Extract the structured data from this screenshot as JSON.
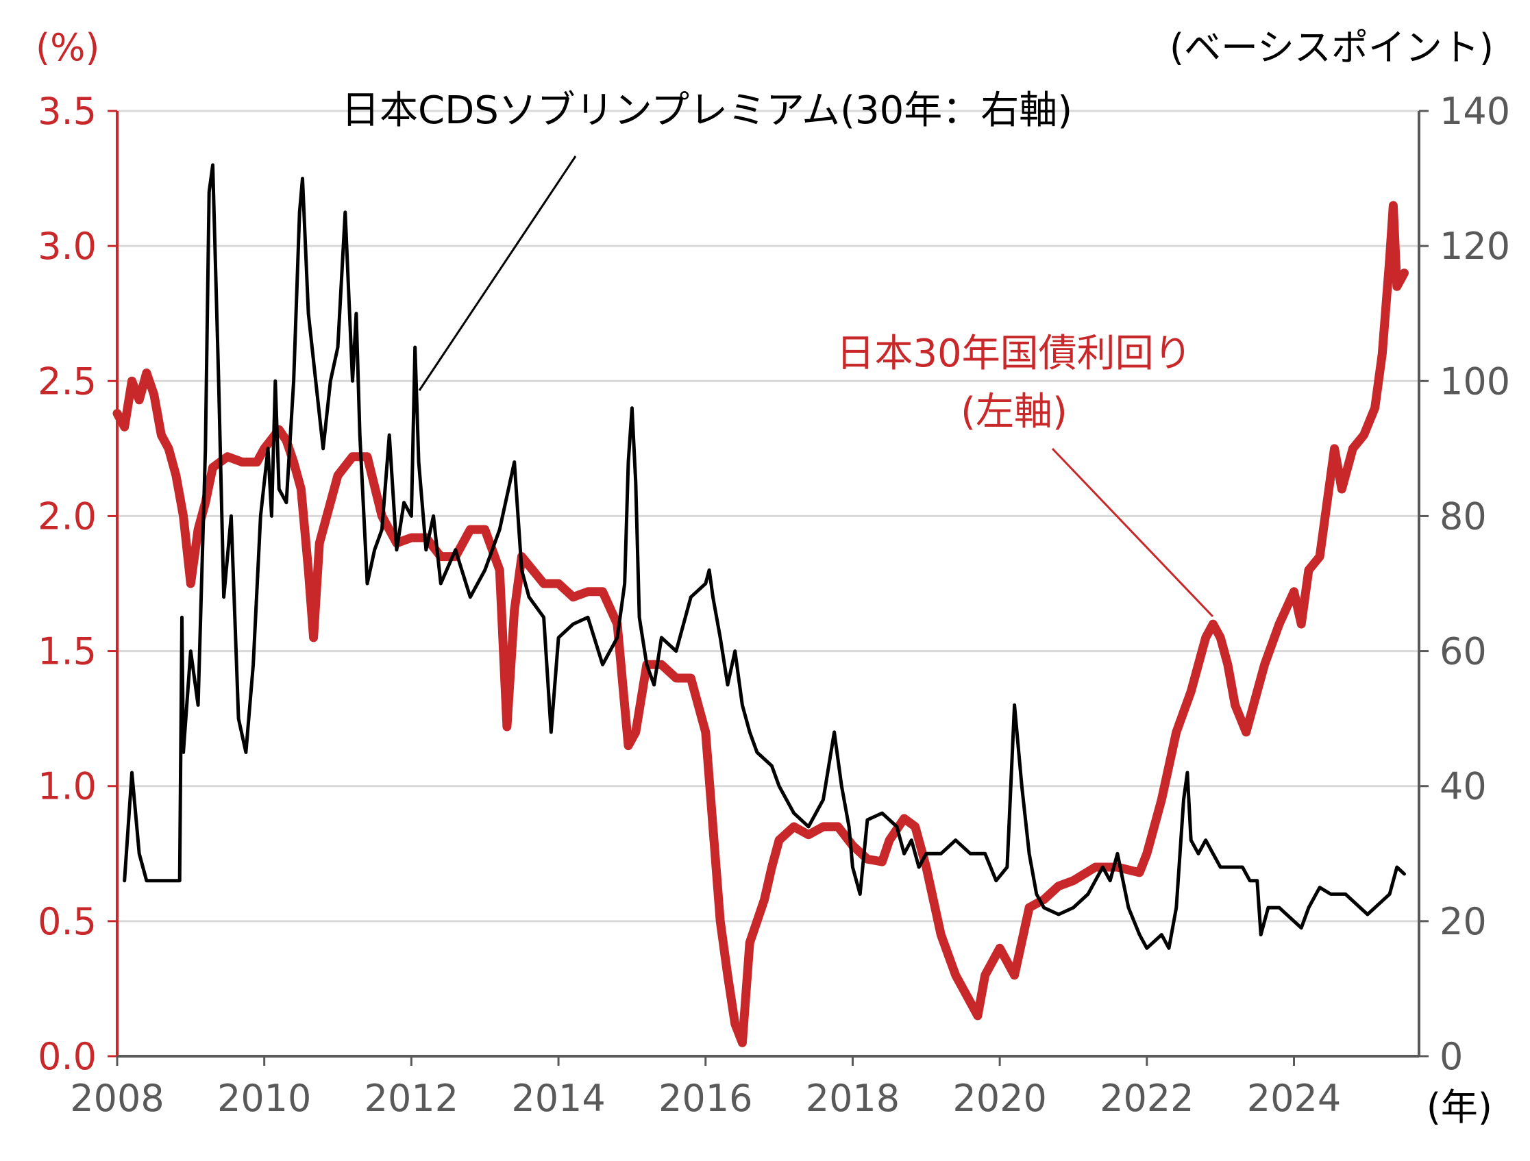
{
  "chart_data": {
    "type": "line",
    "title": "",
    "left_axis": {
      "unit_label": "(%)",
      "ylim": [
        0,
        3.5
      ],
      "ticks": [
        "0.0",
        "0.5",
        "1.0",
        "1.5",
        "2.0",
        "2.5",
        "3.0",
        "3.5"
      ],
      "color": "#c8282a"
    },
    "right_axis": {
      "unit_label": "(ベーシスポイント)",
      "ylim": [
        0,
        140
      ],
      "ticks": [
        "0",
        "20",
        "40",
        "60",
        "80",
        "100",
        "120",
        "140"
      ],
      "color": "#595959"
    },
    "x_axis": {
      "unit_label": "(年)",
      "xlim": [
        2008,
        2025.7
      ],
      "ticks": [
        "2008",
        "2010",
        "2012",
        "2014",
        "2016",
        "2018",
        "2020",
        "2022",
        "2024"
      ]
    },
    "grid": "horizontal",
    "annotations": {
      "cds_label": "日本CDSソブリンプレミアム(30年：右軸)",
      "jgb_label_line1": "日本30年国債利回り",
      "jgb_label_line2": "(左軸)"
    },
    "series": [
      {
        "name": "日本30年国債利回り",
        "axis": "left",
        "color": "#c8282a",
        "points": [
          [
            2008.0,
            2.38
          ],
          [
            2008.1,
            2.33
          ],
          [
            2008.2,
            2.5
          ],
          [
            2008.3,
            2.43
          ],
          [
            2008.4,
            2.53
          ],
          [
            2008.5,
            2.45
          ],
          [
            2008.6,
            2.3
          ],
          [
            2008.7,
            2.25
          ],
          [
            2008.8,
            2.15
          ],
          [
            2008.9,
            2.0
          ],
          [
            2009.0,
            1.75
          ],
          [
            2009.1,
            1.95
          ],
          [
            2009.2,
            2.05
          ],
          [
            2009.3,
            2.18
          ],
          [
            2009.5,
            2.22
          ],
          [
            2009.7,
            2.2
          ],
          [
            2009.9,
            2.2
          ],
          [
            2010.0,
            2.25
          ],
          [
            2010.2,
            2.32
          ],
          [
            2010.3,
            2.28
          ],
          [
            2010.4,
            2.2
          ],
          [
            2010.5,
            2.1
          ],
          [
            2010.6,
            1.8
          ],
          [
            2010.67,
            1.55
          ],
          [
            2010.75,
            1.9
          ],
          [
            2010.9,
            2.05
          ],
          [
            2011.0,
            2.15
          ],
          [
            2011.2,
            2.22
          ],
          [
            2011.4,
            2.22
          ],
          [
            2011.6,
            2.0
          ],
          [
            2011.8,
            1.9
          ],
          [
            2012.0,
            1.92
          ],
          [
            2012.2,
            1.92
          ],
          [
            2012.4,
            1.85
          ],
          [
            2012.6,
            1.85
          ],
          [
            2012.8,
            1.95
          ],
          [
            2013.0,
            1.95
          ],
          [
            2013.2,
            1.8
          ],
          [
            2013.3,
            1.22
          ],
          [
            2013.4,
            1.65
          ],
          [
            2013.5,
            1.85
          ],
          [
            2013.8,
            1.75
          ],
          [
            2014.0,
            1.75
          ],
          [
            2014.2,
            1.7
          ],
          [
            2014.4,
            1.72
          ],
          [
            2014.6,
            1.72
          ],
          [
            2014.8,
            1.6
          ],
          [
            2014.95,
            1.15
          ],
          [
            2015.05,
            1.2
          ],
          [
            2015.2,
            1.45
          ],
          [
            2015.4,
            1.45
          ],
          [
            2015.6,
            1.4
          ],
          [
            2015.8,
            1.4
          ],
          [
            2016.0,
            1.2
          ],
          [
            2016.1,
            0.85
          ],
          [
            2016.2,
            0.5
          ],
          [
            2016.3,
            0.3
          ],
          [
            2016.4,
            0.12
          ],
          [
            2016.5,
            0.05
          ],
          [
            2016.6,
            0.42
          ],
          [
            2016.8,
            0.58
          ],
          [
            2016.9,
            0.7
          ],
          [
            2017.0,
            0.8
          ],
          [
            2017.2,
            0.85
          ],
          [
            2017.4,
            0.82
          ],
          [
            2017.6,
            0.85
          ],
          [
            2017.8,
            0.85
          ],
          [
            2018.0,
            0.78
          ],
          [
            2018.2,
            0.73
          ],
          [
            2018.4,
            0.72
          ],
          [
            2018.5,
            0.8
          ],
          [
            2018.7,
            0.88
          ],
          [
            2018.85,
            0.85
          ],
          [
            2019.0,
            0.7
          ],
          [
            2019.2,
            0.45
          ],
          [
            2019.4,
            0.3
          ],
          [
            2019.6,
            0.2
          ],
          [
            2019.7,
            0.15
          ],
          [
            2019.8,
            0.3
          ],
          [
            2020.0,
            0.4
          ],
          [
            2020.2,
            0.3
          ],
          [
            2020.4,
            0.55
          ],
          [
            2020.6,
            0.58
          ],
          [
            2020.8,
            0.63
          ],
          [
            2021.0,
            0.65
          ],
          [
            2021.3,
            0.7
          ],
          [
            2021.6,
            0.7
          ],
          [
            2021.9,
            0.68
          ],
          [
            2022.0,
            0.75
          ],
          [
            2022.2,
            0.95
          ],
          [
            2022.4,
            1.2
          ],
          [
            2022.6,
            1.35
          ],
          [
            2022.8,
            1.55
          ],
          [
            2022.9,
            1.6
          ],
          [
            2023.0,
            1.55
          ],
          [
            2023.1,
            1.45
          ],
          [
            2023.2,
            1.3
          ],
          [
            2023.35,
            1.2
          ],
          [
            2023.5,
            1.35
          ],
          [
            2023.6,
            1.45
          ],
          [
            2023.8,
            1.6
          ],
          [
            2024.0,
            1.72
          ],
          [
            2024.1,
            1.6
          ],
          [
            2024.2,
            1.8
          ],
          [
            2024.35,
            1.85
          ],
          [
            2024.45,
            2.05
          ],
          [
            2024.55,
            2.25
          ],
          [
            2024.65,
            2.1
          ],
          [
            2024.8,
            2.25
          ],
          [
            2024.95,
            2.3
          ],
          [
            2025.1,
            2.4
          ],
          [
            2025.2,
            2.6
          ],
          [
            2025.3,
            2.95
          ],
          [
            2025.35,
            3.15
          ],
          [
            2025.4,
            2.85
          ],
          [
            2025.5,
            2.9
          ]
        ]
      },
      {
        "name": "日本CDSソブリンプレミアム(30年)",
        "axis": "right",
        "color": "#000000",
        "points": [
          [
            2008.1,
            26
          ],
          [
            2008.2,
            42
          ],
          [
            2008.3,
            30
          ],
          [
            2008.4,
            26
          ],
          [
            2008.6,
            26
          ],
          [
            2008.85,
            26
          ],
          [
            2008.88,
            65
          ],
          [
            2008.9,
            45
          ],
          [
            2009.0,
            60
          ],
          [
            2009.1,
            52
          ],
          [
            2009.2,
            90
          ],
          [
            2009.25,
            128
          ],
          [
            2009.3,
            132
          ],
          [
            2009.38,
            100
          ],
          [
            2009.45,
            68
          ],
          [
            2009.55,
            80
          ],
          [
            2009.65,
            50
          ],
          [
            2009.75,
            45
          ],
          [
            2009.85,
            58
          ],
          [
            2009.95,
            80
          ],
          [
            2010.05,
            90
          ],
          [
            2010.1,
            80
          ],
          [
            2010.15,
            100
          ],
          [
            2010.2,
            84
          ],
          [
            2010.3,
            82
          ],
          [
            2010.4,
            100
          ],
          [
            2010.48,
            125
          ],
          [
            2010.52,
            130
          ],
          [
            2010.6,
            110
          ],
          [
            2010.7,
            100
          ],
          [
            2010.8,
            90
          ],
          [
            2010.9,
            100
          ],
          [
            2011.0,
            105
          ],
          [
            2011.1,
            125
          ],
          [
            2011.2,
            100
          ],
          [
            2011.25,
            110
          ],
          [
            2011.3,
            92
          ],
          [
            2011.4,
            70
          ],
          [
            2011.5,
            75
          ],
          [
            2011.6,
            78
          ],
          [
            2011.7,
            92
          ],
          [
            2011.8,
            75
          ],
          [
            2011.9,
            82
          ],
          [
            2012.0,
            80
          ],
          [
            2012.05,
            105
          ],
          [
            2012.1,
            88
          ],
          [
            2012.2,
            75
          ],
          [
            2012.3,
            80
          ],
          [
            2012.4,
            70
          ],
          [
            2012.6,
            75
          ],
          [
            2012.8,
            68
          ],
          [
            2013.0,
            72
          ],
          [
            2013.2,
            78
          ],
          [
            2013.4,
            88
          ],
          [
            2013.5,
            72
          ],
          [
            2013.6,
            68
          ],
          [
            2013.8,
            65
          ],
          [
            2013.9,
            48
          ],
          [
            2014.0,
            62
          ],
          [
            2014.2,
            64
          ],
          [
            2014.4,
            65
          ],
          [
            2014.6,
            58
          ],
          [
            2014.8,
            62
          ],
          [
            2014.9,
            70
          ],
          [
            2014.95,
            88
          ],
          [
            2015.0,
            96
          ],
          [
            2015.05,
            85
          ],
          [
            2015.1,
            65
          ],
          [
            2015.2,
            58
          ],
          [
            2015.3,
            55
          ],
          [
            2015.4,
            62
          ],
          [
            2015.6,
            60
          ],
          [
            2015.8,
            68
          ],
          [
            2016.0,
            70
          ],
          [
            2016.05,
            72
          ],
          [
            2016.1,
            68
          ],
          [
            2016.2,
            62
          ],
          [
            2016.3,
            55
          ],
          [
            2016.4,
            60
          ],
          [
            2016.5,
            52
          ],
          [
            2016.6,
            48
          ],
          [
            2016.7,
            45
          ],
          [
            2016.9,
            43
          ],
          [
            2017.0,
            40
          ],
          [
            2017.2,
            36
          ],
          [
            2017.4,
            34
          ],
          [
            2017.6,
            38
          ],
          [
            2017.75,
            48
          ],
          [
            2017.85,
            40
          ],
          [
            2017.95,
            34
          ],
          [
            2018.0,
            28
          ],
          [
            2018.1,
            24
          ],
          [
            2018.2,
            35
          ],
          [
            2018.4,
            36
          ],
          [
            2018.6,
            34
          ],
          [
            2018.7,
            30
          ],
          [
            2018.8,
            32
          ],
          [
            2018.9,
            28
          ],
          [
            2019.0,
            30
          ],
          [
            2019.2,
            30
          ],
          [
            2019.4,
            32
          ],
          [
            2019.6,
            30
          ],
          [
            2019.8,
            30
          ],
          [
            2019.95,
            26
          ],
          [
            2020.1,
            28
          ],
          [
            2020.2,
            52
          ],
          [
            2020.3,
            40
          ],
          [
            2020.4,
            30
          ],
          [
            2020.5,
            24
          ],
          [
            2020.6,
            22
          ],
          [
            2020.8,
            21
          ],
          [
            2021.0,
            22
          ],
          [
            2021.2,
            24
          ],
          [
            2021.4,
            28
          ],
          [
            2021.5,
            26
          ],
          [
            2021.6,
            30
          ],
          [
            2021.75,
            22
          ],
          [
            2021.9,
            18
          ],
          [
            2022.0,
            16
          ],
          [
            2022.2,
            18
          ],
          [
            2022.3,
            16
          ],
          [
            2022.4,
            22
          ],
          [
            2022.5,
            38
          ],
          [
            2022.55,
            42
          ],
          [
            2022.6,
            32
          ],
          [
            2022.7,
            30
          ],
          [
            2022.8,
            32
          ],
          [
            2022.9,
            30
          ],
          [
            2023.0,
            28
          ],
          [
            2023.2,
            28
          ],
          [
            2023.3,
            28
          ],
          [
            2023.4,
            26
          ],
          [
            2023.5,
            26
          ],
          [
            2023.55,
            18
          ],
          [
            2023.65,
            22
          ],
          [
            2023.8,
            22
          ],
          [
            2024.0,
            20
          ],
          [
            2024.1,
            19
          ],
          [
            2024.2,
            22
          ],
          [
            2024.35,
            25
          ],
          [
            2024.5,
            24
          ],
          [
            2024.7,
            24
          ],
          [
            2024.9,
            22
          ],
          [
            2025.0,
            21
          ],
          [
            2025.2,
            23
          ],
          [
            2025.3,
            24
          ],
          [
            2025.4,
            28
          ],
          [
            2025.5,
            27
          ]
        ]
      }
    ]
  }
}
